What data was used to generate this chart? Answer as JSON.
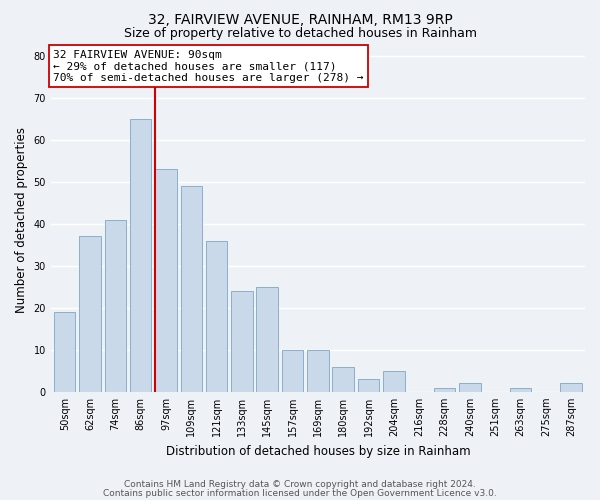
{
  "title": "32, FAIRVIEW AVENUE, RAINHAM, RM13 9RP",
  "subtitle": "Size of property relative to detached houses in Rainham",
  "xlabel": "Distribution of detached houses by size in Rainham",
  "ylabel": "Number of detached properties",
  "categories": [
    "50sqm",
    "62sqm",
    "74sqm",
    "86sqm",
    "97sqm",
    "109sqm",
    "121sqm",
    "133sqm",
    "145sqm",
    "157sqm",
    "169sqm",
    "180sqm",
    "192sqm",
    "204sqm",
    "216sqm",
    "228sqm",
    "240sqm",
    "251sqm",
    "263sqm",
    "275sqm",
    "287sqm"
  ],
  "values": [
    19,
    37,
    41,
    65,
    53,
    49,
    36,
    24,
    25,
    10,
    10,
    6,
    3,
    5,
    0,
    1,
    2,
    0,
    1,
    0,
    2
  ],
  "bar_color": "#c9d9ea",
  "bar_edge_color": "#8ab0cc",
  "property_line_x": 3.57,
  "property_line_color": "#cc0000",
  "annotation_text": "32 FAIRVIEW AVENUE: 90sqm\n← 29% of detached houses are smaller (117)\n70% of semi-detached houses are larger (278) →",
  "annotation_box_color": "#ffffff",
  "annotation_box_edge": "#cc0000",
  "ylim": [
    0,
    82
  ],
  "yticks": [
    0,
    10,
    20,
    30,
    40,
    50,
    60,
    70,
    80
  ],
  "footer_line1": "Contains HM Land Registry data © Crown copyright and database right 2024.",
  "footer_line2": "Contains public sector information licensed under the Open Government Licence v3.0.",
  "bg_color": "#eef2f7",
  "plot_bg_color": "#eef2f7",
  "grid_color": "#ffffff",
  "title_fontsize": 10,
  "subtitle_fontsize": 9,
  "axis_label_fontsize": 8.5,
  "tick_fontsize": 7,
  "footer_fontsize": 6.5,
  "annot_fontsize": 8
}
